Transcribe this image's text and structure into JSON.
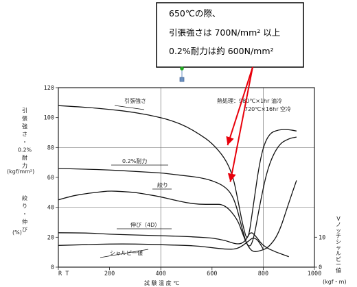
{
  "chart_data": {
    "type": "line",
    "xlabel": "試 験 温 度 ℃",
    "xlim": [
      0,
      1000
    ],
    "x_ticks": [
      {
        "value": 0,
        "label": "R T"
      },
      {
        "value": 200,
        "label": "200"
      },
      {
        "value": 400,
        "label": "400"
      },
      {
        "value": 600,
        "label": "600"
      },
      {
        "value": 800,
        "label": "800"
      },
      {
        "value": 1000,
        "label": "1000"
      }
    ],
    "ylim": [
      0,
      120
    ],
    "y_ticks": [
      0,
      20,
      40,
      60,
      80,
      100,
      120
    ],
    "ylabel_top": [
      "引",
      "張",
      "強",
      "さ",
      "・",
      "0.2%",
      "耐",
      "力"
    ],
    "ylabel_top_unit": "(kgf/mm²)",
    "ylabel_bottom": [
      "絞",
      "り",
      "・",
      "伸",
      "び"
    ],
    "ylabel_bottom_unit": "(%)",
    "y2lim": [
      0,
      20
    ],
    "y2_ticks": [
      0,
      10
    ],
    "y2label": [
      "V",
      "ノ",
      "ッ",
      "チ",
      "シ",
      "ャ",
      "ル",
      "ピ",
      "ー",
      "値"
    ],
    "y2label_unit": "(kgf・m)",
    "heat_treatment": [
      "熱処理：980℃×1hr 油冷",
      "720℃×16hr 空冷"
    ],
    "grid": true,
    "series": [
      {
        "name": "引張強さ",
        "x": [
          0,
          100,
          200,
          300,
          400,
          450,
          500,
          550,
          600,
          650,
          680,
          700,
          720,
          740,
          760,
          790,
          820,
          860,
          900,
          930
        ],
        "y": [
          108,
          107,
          105.5,
          103.5,
          100,
          97.5,
          94,
          89,
          83,
          73,
          62,
          46,
          28,
          16,
          40,
          75,
          89,
          92,
          92,
          91
        ]
      },
      {
        "name": "0.2%耐力",
        "x": [
          0,
          100,
          200,
          300,
          400,
          450,
          500,
          550,
          600,
          650,
          680,
          700,
          720,
          740,
          760,
          790,
          820,
          860,
          900,
          930
        ],
        "y": [
          66,
          65.5,
          65,
          64,
          63,
          62,
          61,
          60,
          58,
          54,
          48,
          38,
          24,
          13,
          16,
          45,
          68,
          82,
          86,
          87
        ]
      },
      {
        "name": "絞り",
        "x": [
          0,
          50,
          100,
          150,
          200,
          250,
          300,
          350,
          400,
          450,
          500,
          550,
          600,
          650,
          700,
          720,
          740,
          760,
          790,
          820,
          860,
          900,
          930
        ],
        "y": [
          45,
          47.5,
          49,
          50,
          51,
          50.5,
          50,
          48.5,
          47,
          45,
          43,
          42,
          42,
          42,
          32,
          22,
          14,
          10,
          11,
          13,
          22,
          43,
          58
        ]
      },
      {
        "name": "伸び（4D）",
        "x": [
          0,
          100,
          200,
          300,
          400,
          500,
          550,
          600,
          650,
          700,
          730,
          750,
          770,
          800,
          850,
          900
        ],
        "y": [
          23,
          23,
          22,
          21.5,
          21,
          20.5,
          20,
          19.5,
          18,
          15,
          17,
          24,
          21,
          14,
          10,
          7
        ]
      },
      {
        "name": "シャルピー値",
        "x": [
          0,
          100,
          200,
          300,
          400,
          500,
          550,
          600,
          650,
          700,
          740,
          760,
          780,
          800
        ],
        "y": [
          14.5,
          15,
          15.5,
          15.5,
          15,
          14.5,
          14,
          13,
          12,
          12,
          17,
          20,
          18,
          12
        ]
      }
    ],
    "series_labels": [
      "引張強さ",
      "0.2%耐力",
      "絞り",
      "伸び（4D）",
      "シャルピー値"
    ]
  },
  "callout": {
    "lines": [
      "650℃の際、",
      "引張強さは 700N/mm² 以上",
      "0.2%耐力は約 600N/mm²"
    ],
    "color": "#000000"
  },
  "colors": {
    "arrow": "#e8000b",
    "curve": "#111111",
    "grid": "#777777",
    "handle_green": "#22aa22",
    "handle_blue": "#6a8fc0"
  }
}
